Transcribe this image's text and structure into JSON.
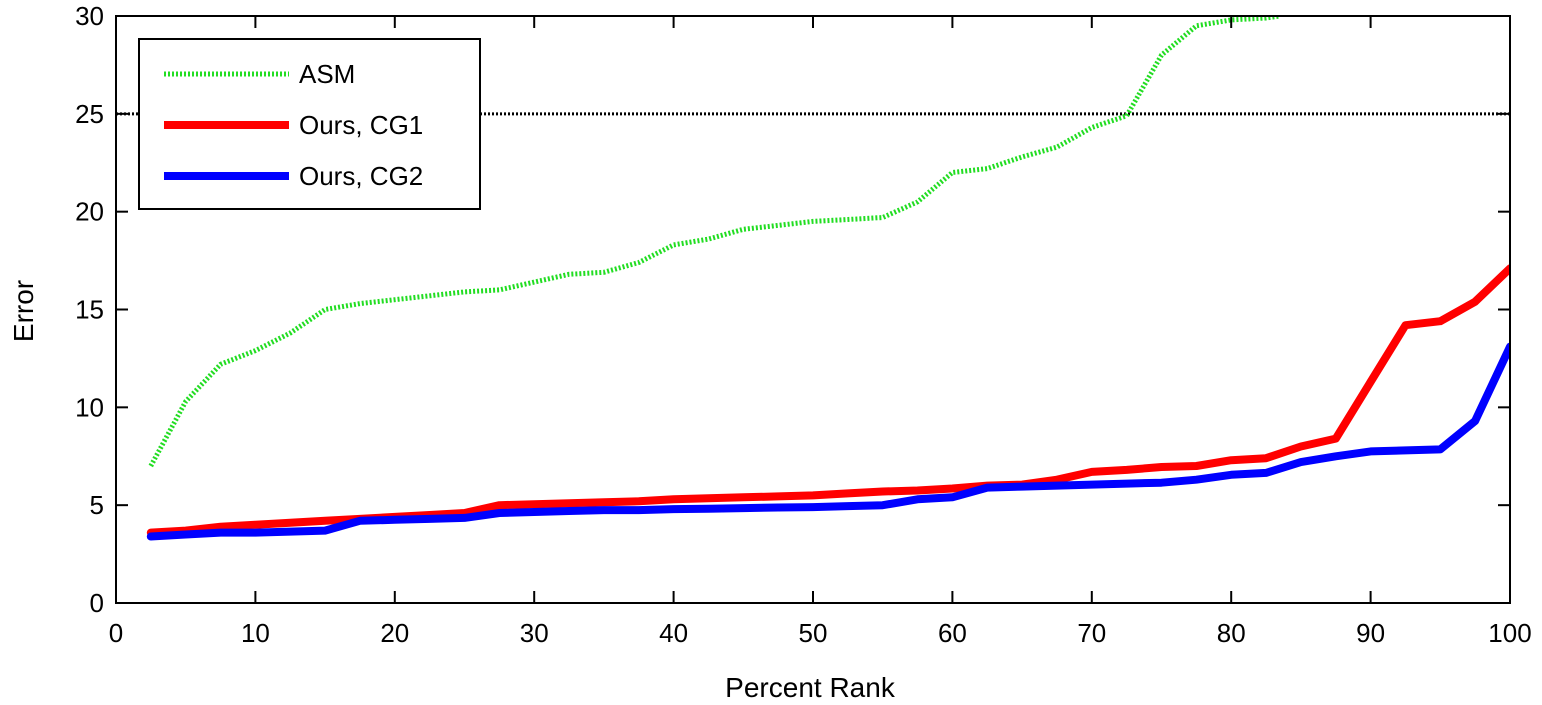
{
  "chart_data": {
    "type": "line",
    "title": "",
    "xlabel": "Percent Rank",
    "ylabel": "Error",
    "xlim": [
      0,
      100
    ],
    "ylim": [
      0,
      30
    ],
    "xticks": [
      0,
      10,
      20,
      30,
      40,
      50,
      60,
      70,
      80,
      90,
      100
    ],
    "yticks": [
      0,
      5,
      10,
      15,
      20,
      25,
      30
    ],
    "grid": false,
    "legend_position": "top-left",
    "reference_line": {
      "y": 25,
      "color": "#000000",
      "style": "dotted"
    },
    "series": [
      {
        "name": "ASM",
        "color": "#22dd22",
        "style": "dotted",
        "x": [
          2.5,
          5,
          7.5,
          10,
          12.5,
          15,
          17.5,
          20,
          22.5,
          25,
          27.5,
          30,
          32.5,
          35,
          37.5,
          40,
          42.5,
          45,
          47.5,
          50,
          52.5,
          55,
          57.5,
          60,
          62.5,
          65,
          67.5,
          70,
          72.5,
          75,
          77.5,
          80,
          82.5,
          83.5
        ],
        "y": [
          7.0,
          10.3,
          12.2,
          12.9,
          13.8,
          15.0,
          15.3,
          15.5,
          15.7,
          15.9,
          16.0,
          16.4,
          16.8,
          16.9,
          17.4,
          18.3,
          18.6,
          19.1,
          19.3,
          19.5,
          19.6,
          19.7,
          20.5,
          22.0,
          22.2,
          22.8,
          23.3,
          24.3,
          24.9,
          28.0,
          29.5,
          29.8,
          29.9,
          30.0
        ]
      },
      {
        "name": "Ours, CG1",
        "color": "#ff0000",
        "style": "solid",
        "x": [
          2.5,
          5,
          7.5,
          10,
          12.5,
          15,
          17.5,
          20,
          22.5,
          25,
          27.5,
          30,
          32.5,
          35,
          37.5,
          40,
          42.5,
          45,
          47.5,
          50,
          52.5,
          55,
          57.5,
          60,
          62.5,
          65,
          67.5,
          70,
          72.5,
          75,
          77.5,
          80,
          82.5,
          85,
          87.5,
          90,
          92.5,
          95,
          97.5,
          100
        ],
        "y": [
          3.6,
          3.7,
          3.9,
          4.0,
          4.1,
          4.2,
          4.3,
          4.4,
          4.5,
          4.6,
          5.0,
          5.05,
          5.1,
          5.15,
          5.2,
          5.3,
          5.35,
          5.4,
          5.45,
          5.5,
          5.6,
          5.7,
          5.75,
          5.85,
          6.0,
          6.05,
          6.3,
          6.7,
          6.8,
          6.95,
          7.0,
          7.3,
          7.4,
          8.0,
          8.4,
          11.3,
          14.2,
          14.4,
          15.4,
          17.1
        ]
      },
      {
        "name": "Ours, CG2",
        "color": "#0000ff",
        "style": "solid",
        "x": [
          2.5,
          5,
          7.5,
          10,
          12.5,
          15,
          17.5,
          20,
          22.5,
          25,
          27.5,
          30,
          32.5,
          35,
          37.5,
          40,
          42.5,
          45,
          47.5,
          50,
          52.5,
          55,
          57.5,
          60,
          62.5,
          65,
          67.5,
          70,
          72.5,
          75,
          77.5,
          80,
          82.5,
          85,
          87.5,
          90,
          92.5,
          95,
          97.5,
          100
        ],
        "y": [
          3.4,
          3.5,
          3.6,
          3.6,
          3.65,
          3.7,
          4.2,
          4.25,
          4.3,
          4.35,
          4.6,
          4.65,
          4.7,
          4.75,
          4.75,
          4.8,
          4.82,
          4.85,
          4.88,
          4.9,
          4.95,
          5.0,
          5.3,
          5.4,
          5.9,
          5.95,
          6.0,
          6.05,
          6.1,
          6.15,
          6.3,
          6.55,
          6.65,
          7.2,
          7.5,
          7.75,
          7.8,
          7.85,
          9.3,
          13.1
        ]
      }
    ]
  }
}
